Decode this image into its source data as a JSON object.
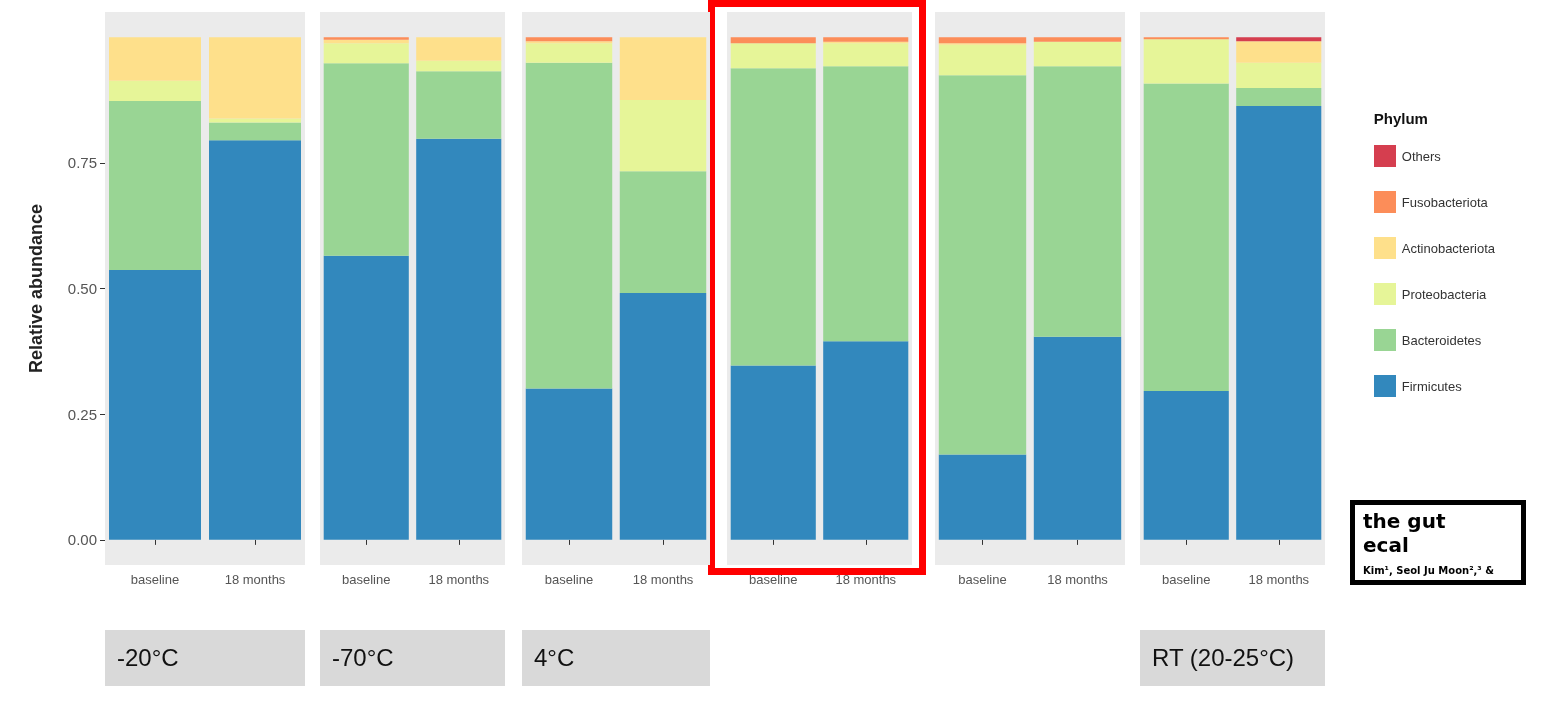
{
  "chart_data": [
    {
      "type": "bar",
      "stacked": true,
      "xlabel": "-20°C",
      "ylabel": "Relative abundance",
      "categories": [
        "baseline",
        "18 months"
      ],
      "ylim": [
        -0.05,
        1.05
      ],
      "yticks": [
        {
          "value": 0,
          "label": "0.00"
        },
        {
          "value": 0.25,
          "label": "0.25"
        },
        {
          "value": 0.5,
          "label": "0.50"
        },
        {
          "value": 0.75,
          "label": "0.75"
        }
      ],
      "annotations": [
        "the gut",
        "ecal",
        "Kim¹, Seol Ju Moon²,³ &"
      ],
      "series": [
        {
          "color": "#3288bd",
          "values": [
            0.537,
            0.795
          ]
        },
        {
          "color": "#99d594",
          "values": [
            0.336,
            0.035
          ]
        },
        {
          "color": "#e6f598",
          "values": [
            0.04,
            0.008
          ]
        },
        {
          "color": "#fee08b",
          "values": [
            0.087,
            0.162
          ]
        },
        {
          "color": "#fc8d59",
          "values": [
            0,
            0
          ]
        },
        {
          "color": "#d53e4f",
          "values": [
            0,
            0
          ]
        }
      ]
    },
    {
      "type": "bar",
      "stacked": true,
      "xlabel": "-70°C",
      "categories": [
        "baseline",
        "18 months"
      ],
      "ylim": [
        -0.05,
        1.05
      ],
      "tick_labels": "x",
      "series": [
        {
          "color": "#3288bd",
          "values": [
            0.565,
            0.798
          ]
        },
        {
          "color": "#99d594",
          "values": [
            0.383,
            0.134
          ]
        },
        {
          "color": "#e6f598",
          "values": [
            0.04,
            0.021
          ]
        },
        {
          "color": "#fee08b",
          "values": [
            0.007,
            0.047
          ]
        },
        {
          "color": "#fc8d59",
          "values": [
            0.005,
            0
          ]
        },
        {
          "color": "#d53e4f",
          "values": [
            0,
            0
          ]
        }
      ]
    },
    {
      "type": "bar",
      "stacked": true,
      "xlabel": "4°C",
      "categories": [
        "baseline",
        "18 months"
      ],
      "ylim": [
        -0.05,
        1.05
      ],
      "tick_labels": "x",
      "series": [
        {
          "color": "#3288bd",
          "values": [
            0.301,
            0.491
          ]
        },
        {
          "color": "#99d594",
          "values": [
            0.648,
            0.242
          ]
        },
        {
          "color": "#e6f598",
          "values": [
            0.039,
            0.142
          ]
        },
        {
          "color": "#fee08b",
          "values": [
            0.004,
            0.125
          ]
        },
        {
          "color": "#fc8d59",
          "values": [
            0.008,
            0
          ]
        },
        {
          "color": "#d53e4f",
          "values": [
            0,
            0
          ]
        }
      ]
    },
    {
      "type": "bar",
      "stacked": true,
      "categories": [
        "baseline",
        "18 months"
      ],
      "ylim": [
        -0.05,
        1.05
      ],
      "tick_labels": "x",
      "series": [
        {
          "color": "#3288bd",
          "values": [
            0.347,
            0.395
          ]
        },
        {
          "color": "#99d594",
          "values": [
            0.591,
            0.547
          ]
        },
        {
          "color": "#e6f598",
          "values": [
            0.05,
            0.046
          ]
        },
        {
          "color": "#fee08b",
          "values": [
            0,
            0.003
          ]
        },
        {
          "color": "#fc8d59",
          "values": [
            0.012,
            0.009
          ]
        },
        {
          "color": "#d53e4f",
          "values": [
            0,
            0
          ]
        }
      ]
    },
    {
      "type": "bar",
      "stacked": true,
      "categories": [
        "baseline",
        "18 months"
      ],
      "ylim": [
        -0.05,
        1.05
      ],
      "tick_labels": "x",
      "series": [
        {
          "color": "#3288bd",
          "values": [
            0.17,
            0.404
          ]
        },
        {
          "color": "#99d594",
          "values": [
            0.754,
            0.538
          ]
        },
        {
          "color": "#e6f598",
          "values": [
            0.061,
            0.049
          ]
        },
        {
          "color": "#fee08b",
          "values": [
            0.003,
            0
          ]
        },
        {
          "color": "#fc8d59",
          "values": [
            0.012,
            0.009
          ]
        },
        {
          "color": "#d53e4f",
          "values": [
            0,
            0
          ]
        }
      ]
    },
    {
      "type": "bar",
      "stacked": true,
      "xlabel": "RT (20-25°C)",
      "categories": [
        "baseline",
        "18 months"
      ],
      "ylim": [
        -0.05,
        1.05
      ],
      "tick_labels": "x",
      "legend": "right",
      "legend_title": "Phylum",
      "series": [
        {
          "name": "Firmicutes",
          "color": "#3288bd",
          "values": [
            0.296,
            0.863
          ]
        },
        {
          "name": "Bacteroidetes",
          "color": "#99d594",
          "values": [
            0.612,
            0.036
          ]
        },
        {
          "name": "Proteobacteria",
          "color": "#e6f598",
          "values": [
            0.088,
            0.05
          ]
        },
        {
          "name": "Actinobacteriota",
          "color": "#fee08b",
          "values": [
            0,
            0.043
          ]
        },
        {
          "name": "Fusobacteriota",
          "color": "#fc8d59",
          "values": [
            0.004,
            0
          ]
        },
        {
          "name": "Others",
          "color": "#d53e4f",
          "values": [
            0,
            0.008
          ]
        }
      ]
    }
  ]
}
